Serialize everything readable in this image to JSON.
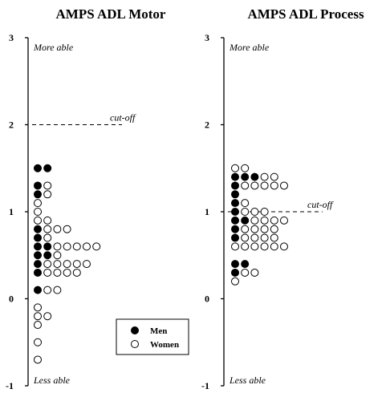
{
  "chart_data": [
    {
      "type": "scatter",
      "title": "AMPS ADL Motor",
      "ylim": [
        -1,
        3
      ],
      "yticks": [
        "-1",
        "0",
        "1",
        "2",
        "3"
      ],
      "top_label": "More able",
      "bottom_label": "Less able",
      "cutoff": {
        "label": "cut-off",
        "y": 2.0
      },
      "legend": {
        "men": "Men",
        "women": "Women",
        "position": "bottom-right"
      },
      "men": [
        {
          "y": 1.5,
          "n": 2
        },
        {
          "y": 1.3,
          "n": 1
        },
        {
          "y": 1.2,
          "n": 1
        },
        {
          "y": 0.8,
          "n": 1
        },
        {
          "y": 0.7,
          "n": 1
        },
        {
          "y": 0.6,
          "n": 2
        },
        {
          "y": 0.5,
          "n": 2
        },
        {
          "y": 0.4,
          "n": 1
        },
        {
          "y": 0.3,
          "n": 1
        },
        {
          "y": 0.1,
          "n": 1
        }
      ],
      "women": [
        {
          "y": 1.3,
          "n": 1
        },
        {
          "y": 1.2,
          "n": 1
        },
        {
          "y": 1.1,
          "n": 1
        },
        {
          "y": 1.0,
          "n": 1
        },
        {
          "y": 0.9,
          "n": 2
        },
        {
          "y": 0.8,
          "n": 3
        },
        {
          "y": 0.7,
          "n": 1
        },
        {
          "y": 0.6,
          "n": 5
        },
        {
          "y": 0.5,
          "n": 1
        },
        {
          "y": 0.4,
          "n": 5
        },
        {
          "y": 0.3,
          "n": 4
        },
        {
          "y": 0.1,
          "n": 2
        },
        {
          "y": -0.1,
          "n": 1
        },
        {
          "y": -0.2,
          "n": 2
        },
        {
          "y": -0.3,
          "n": 1
        },
        {
          "y": -0.5,
          "n": 1
        },
        {
          "y": -0.7,
          "n": 1
        }
      ]
    },
    {
      "type": "scatter",
      "title": "AMPS ADL Process",
      "ylim": [
        -1,
        3
      ],
      "yticks": [
        "-1",
        "0",
        "1",
        "2",
        "3"
      ],
      "top_label": "More able",
      "bottom_label": "Less able",
      "cutoff": {
        "label": "cut-off",
        "y": 1.0
      },
      "men": [
        {
          "y": 1.4,
          "n": 3
        },
        {
          "y": 1.3,
          "n": 1
        },
        {
          "y": 1.2,
          "n": 1
        },
        {
          "y": 1.1,
          "n": 1
        },
        {
          "y": 1.0,
          "n": 1
        },
        {
          "y": 0.9,
          "n": 2
        },
        {
          "y": 0.8,
          "n": 1
        },
        {
          "y": 0.7,
          "n": 1
        },
        {
          "y": 0.4,
          "n": 2
        },
        {
          "y": 0.3,
          "n": 1
        }
      ],
      "women": [
        {
          "y": 1.5,
          "n": 2
        },
        {
          "y": 1.4,
          "n": 2
        },
        {
          "y": 1.3,
          "n": 5
        },
        {
          "y": 1.1,
          "n": 1
        },
        {
          "y": 1.0,
          "n": 3
        },
        {
          "y": 0.9,
          "n": 4
        },
        {
          "y": 0.8,
          "n": 4
        },
        {
          "y": 0.7,
          "n": 4
        },
        {
          "y": 0.6,
          "n": 6
        },
        {
          "y": 0.3,
          "n": 2
        },
        {
          "y": 0.2,
          "n": 1
        }
      ]
    }
  ]
}
